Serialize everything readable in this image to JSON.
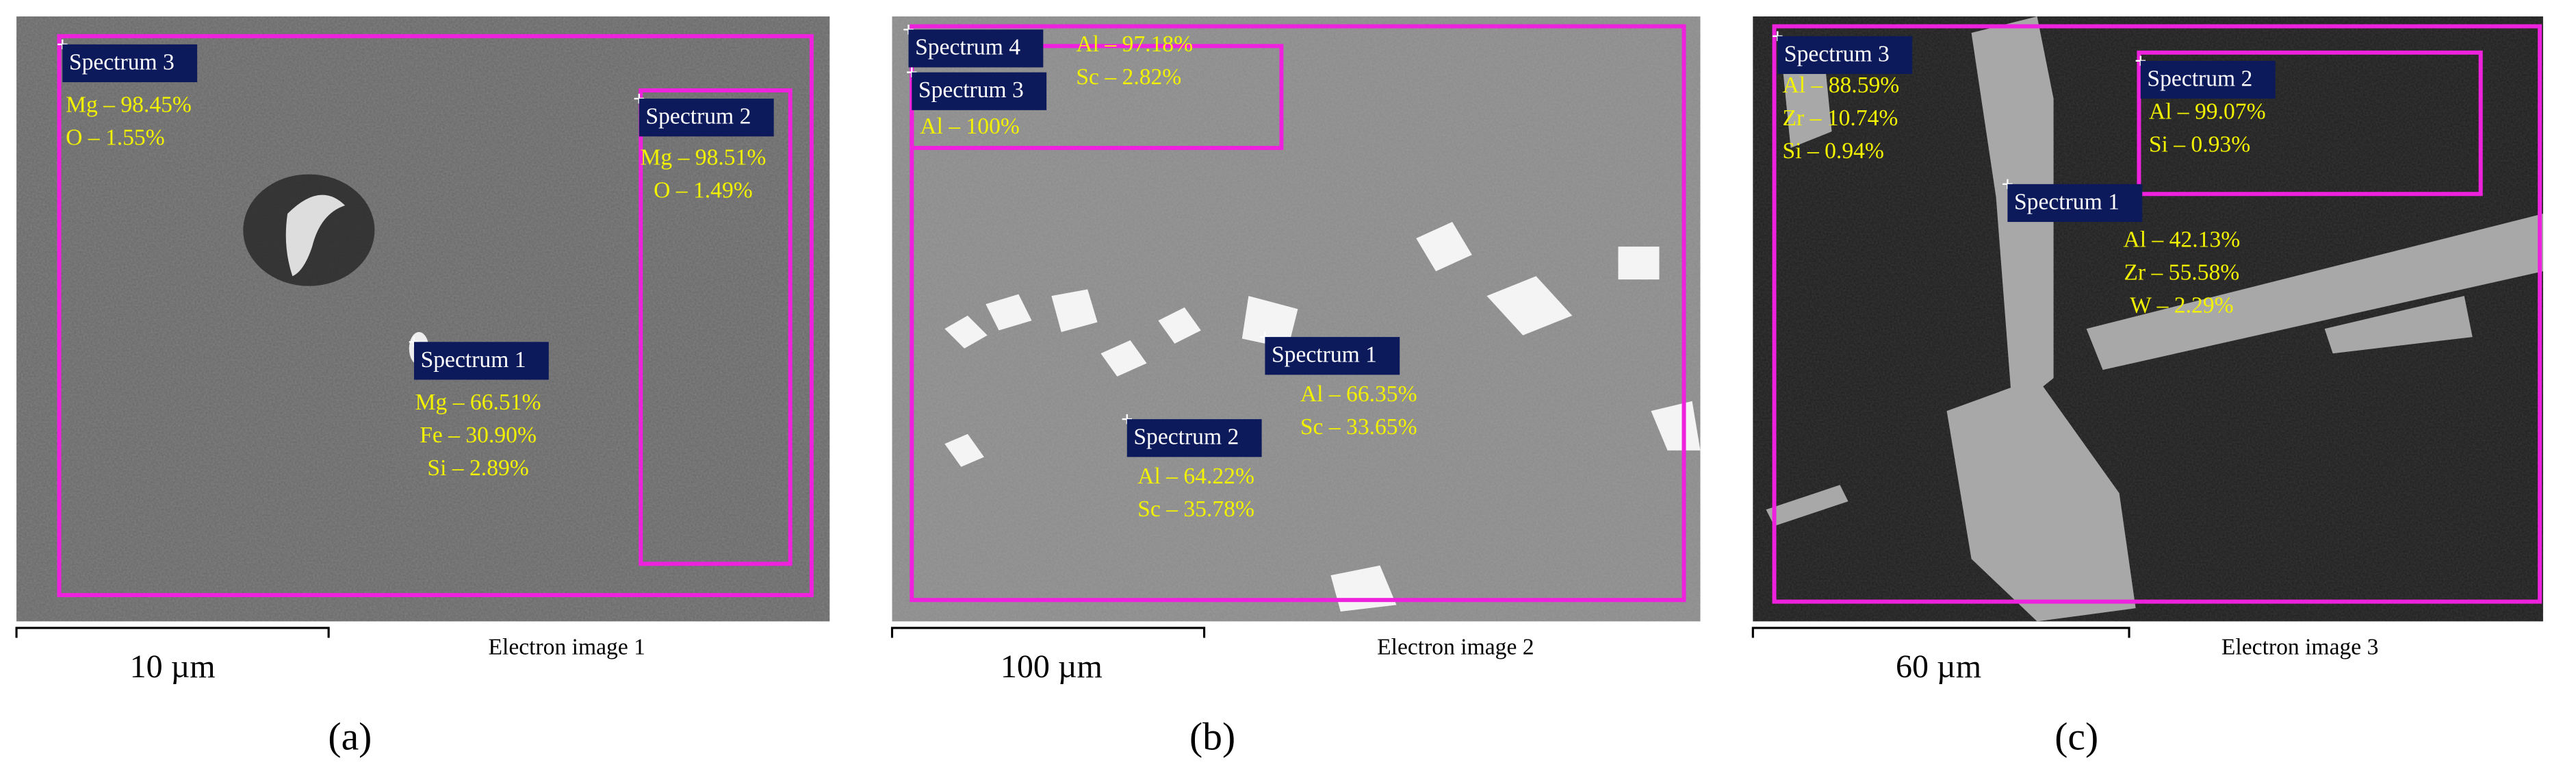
{
  "panels": [
    {
      "label": "(a)",
      "scale_bar": "10 µm",
      "caption": "Electron image 1",
      "spectra": [
        {
          "name": "Spectrum 3",
          "lines": [
            "Mg – 98.45%",
            "O – 1.55%"
          ]
        },
        {
          "name": "Spectrum 2",
          "lines": [
            "Mg – 98.51%",
            "O – 1.49%"
          ]
        },
        {
          "name": "Spectrum 1",
          "lines": [
            "Mg – 66.51%",
            "Fe – 30.90%",
            "Si – 2.89%"
          ]
        }
      ]
    },
    {
      "label": "(b)",
      "scale_bar": "100 µm",
      "caption": "Electron image 2",
      "spectra": [
        {
          "name": "Spectrum 4",
          "lines": [
            "Al – 97.18%",
            "Sc – 2.82%"
          ]
        },
        {
          "name": "Spectrum 3",
          "lines": [
            "Al – 100%"
          ]
        },
        {
          "name": "Spectrum 1",
          "lines": [
            "Al – 66.35%",
            "Sc – 33.65%"
          ]
        },
        {
          "name": "Spectrum 2",
          "lines": [
            "Al – 64.22%",
            "Sc – 35.78%"
          ]
        }
      ]
    },
    {
      "label": "(c)",
      "scale_bar": "60 µm",
      "caption": "Electron image 3",
      "spectra": [
        {
          "name": "Spectrum 3",
          "lines": [
            "Al – 88.59%",
            "Zr – 10.74%",
            "Si – 0.94%"
          ]
        },
        {
          "name": "Spectrum 2",
          "lines": [
            "Al – 99.07%",
            "Si – 0.93%"
          ]
        },
        {
          "name": "Spectrum 1",
          "lines": [
            "Al – 42.13%",
            "Zr – 55.58%",
            "W – 2.29%"
          ]
        }
      ]
    }
  ]
}
